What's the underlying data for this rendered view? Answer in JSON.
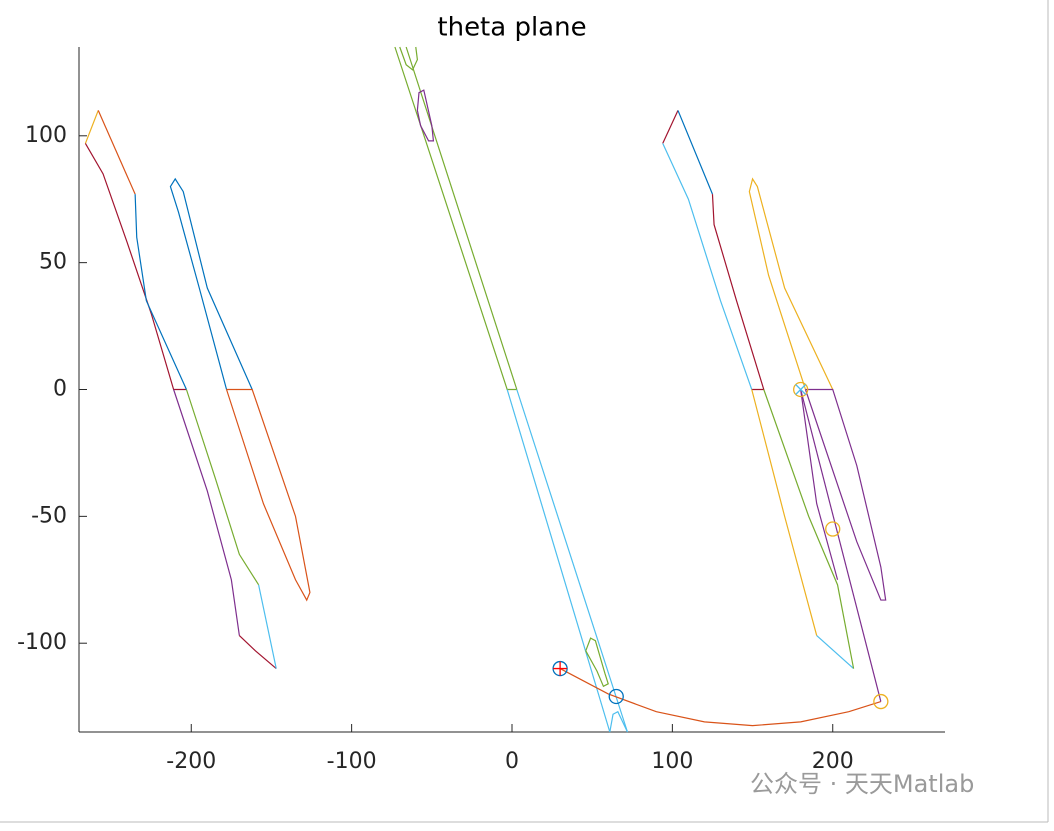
{
  "chart_data": {
    "type": "line",
    "title": "theta plane",
    "xlim": [
      -270,
      270
    ],
    "ylim": [
      -135,
      135
    ],
    "xticks": [
      -200,
      -100,
      0,
      100,
      200
    ],
    "yticks": [
      -100,
      -50,
      0,
      50,
      100
    ],
    "watermark": "公众号 · 天天Matlab",
    "series": [
      {
        "color": "#EDB120",
        "x": [
          -266,
          -258
        ],
        "y": [
          97,
          110
        ]
      },
      {
        "color": "#D95319",
        "x": [
          -258,
          -235
        ],
        "y": [
          110,
          77
        ]
      },
      {
        "color": "#A2142F",
        "x": [
          -266,
          -255,
          -240,
          -225,
          -211,
          -203
        ],
        "y": [
          97,
          85,
          58,
          30,
          0,
          0
        ]
      },
      {
        "color": "#0072BD",
        "x": [
          -235,
          -234,
          -228,
          -203
        ],
        "y": [
          77,
          60,
          35,
          0
        ]
      },
      {
        "color": "#7E2F8E",
        "x": [
          -211,
          -190,
          -175,
          -170
        ],
        "y": [
          0,
          -40,
          -75,
          -97
        ]
      },
      {
        "color": "#A2142F",
        "x": [
          -170,
          -160,
          -147
        ],
        "y": [
          -97,
          -103,
          -110
        ]
      },
      {
        "color": "#77AC30",
        "x": [
          -203,
          -185,
          -170,
          -158
        ],
        "y": [
          0,
          -35,
          -65,
          -77
        ]
      },
      {
        "color": "#4DBEEE",
        "x": [
          -158,
          -152,
          -147
        ],
        "y": [
          -77,
          -95,
          -110
        ]
      },
      {
        "color": "#0072BD",
        "x": [
          -178,
          -195,
          -208,
          -213,
          -210,
          -205,
          -190,
          -162
        ],
        "y": [
          0,
          40,
          70,
          80,
          83,
          78,
          40,
          0
        ]
      },
      {
        "color": "#D95319",
        "x": [
          -178,
          -155,
          -135,
          -128,
          -126,
          -135,
          -162,
          -178
        ],
        "y": [
          0,
          -45,
          -75,
          -83,
          -80,
          -50,
          0,
          0
        ]
      },
      {
        "color": "#77AC30",
        "x": [
          -73,
          -3,
          3
        ],
        "y": [
          135,
          0,
          0
        ]
      },
      {
        "color": "#77AC30",
        "x": [
          -66,
          3
        ],
        "y": [
          135,
          0
        ]
      },
      {
        "color": "#4DBEEE",
        "x": [
          -3,
          61
        ],
        "y": [
          0,
          -135
        ]
      },
      {
        "color": "#4DBEEE",
        "x": [
          3,
          72
        ],
        "y": [
          0,
          -135
        ]
      },
      {
        "color": "#77AC30",
        "x": [
          -70,
          -66,
          -62,
          -59,
          -60
        ],
        "y": [
          135,
          128,
          126,
          130,
          135
        ]
      },
      {
        "color": "#7E2F8E",
        "x": [
          -59,
          -58,
          -55,
          -50,
          -49,
          -52,
          -57,
          -59
        ],
        "y": [
          110,
          117,
          118,
          104,
          98,
          98,
          104,
          110
        ]
      },
      {
        "color": "#77AC30",
        "x": [
          46,
          49,
          52,
          58,
          60,
          57,
          53,
          46
        ],
        "y": [
          -103,
          -98,
          -99,
          -112,
          -116,
          -117,
          -111,
          -103
        ]
      },
      {
        "color": "#4DBEEE",
        "x": [
          61,
          63,
          66,
          69,
          72
        ],
        "y": [
          -135,
          -128,
          -127,
          -131,
          -135
        ]
      },
      {
        "color": "#D95319",
        "x": [
          30,
          60,
          90,
          120,
          150,
          180,
          210,
          230
        ],
        "y": [
          -110,
          -120,
          -127,
          -131,
          -132.5,
          -131,
          -127,
          -123
        ]
      },
      {
        "color": "#A2142F",
        "x": [
          94,
          103.5
        ],
        "y": [
          97,
          110
        ]
      },
      {
        "color": "#0072BD",
        "x": [
          103.5,
          125
        ],
        "y": [
          110,
          77
        ]
      },
      {
        "color": "#4DBEEE",
        "x": [
          94,
          110,
          130,
          149.5
        ],
        "y": [
          97,
          75,
          35,
          0
        ]
      },
      {
        "color": "#A2142F",
        "x": [
          125,
          126,
          140,
          157,
          149.5
        ],
        "y": [
          77,
          65,
          35,
          0,
          0
        ]
      },
      {
        "color": "#EDB120",
        "x": [
          149.5,
          170,
          190
        ],
        "y": [
          0,
          -50,
          -97
        ]
      },
      {
        "color": "#4DBEEE",
        "x": [
          190,
          213
        ],
        "y": [
          -97,
          -110
        ]
      },
      {
        "color": "#77AC30",
        "x": [
          157,
          185,
          203,
          213
        ],
        "y": [
          0,
          -50,
          -77,
          -110
        ]
      },
      {
        "color": "#EDB120",
        "x": [
          183,
          160,
          148,
          150,
          153,
          170,
          200
        ],
        "y": [
          0,
          45,
          78,
          83,
          80,
          40,
          0
        ]
      },
      {
        "color": "#7E2F8E",
        "x": [
          183,
          200,
          215,
          230,
          233,
          230,
          215,
          183
        ],
        "y": [
          0,
          0,
          -30,
          -70,
          -83,
          -83,
          -60,
          0
        ]
      },
      {
        "color": "#7E2F8E",
        "x": [
          180,
          230
        ],
        "y": [
          0,
          -123
        ]
      },
      {
        "color": "#7E2F8E",
        "x": [
          180,
          190,
          203
        ],
        "y": [
          0,
          -45,
          -75
        ]
      },
      {
        "color": "#0072BD",
        "marker": "o",
        "x": [
          30,
          65
        ],
        "y": [
          -110,
          -121
        ]
      },
      {
        "color": "#FF0000",
        "marker": "+",
        "x": [
          30
        ],
        "y": [
          -110
        ]
      },
      {
        "color": "#EDB120",
        "marker": "o",
        "x": [
          230,
          200,
          180
        ],
        "y": [
          -123,
          -55,
          0
        ]
      },
      {
        "color": "#4DBEEE",
        "marker": "x",
        "x": [
          180
        ],
        "y": [
          0
        ]
      }
    ]
  }
}
